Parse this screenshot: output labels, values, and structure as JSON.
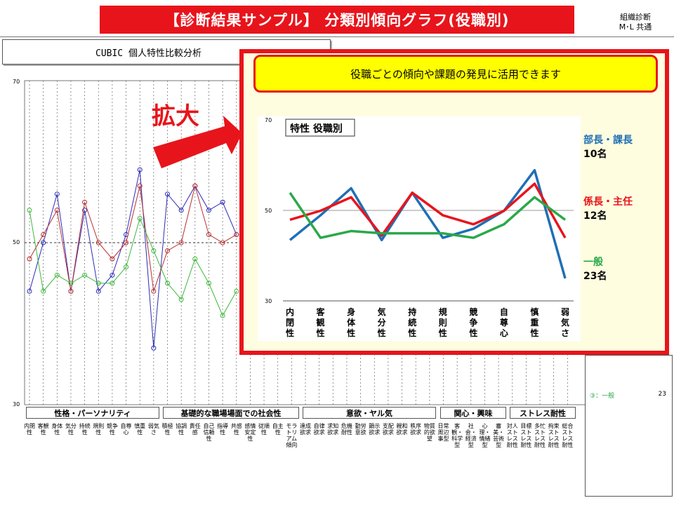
{
  "title": "【診断結果サンプル】 分類別傾向グラフ(役職別)",
  "corner_tag": [
    "組織診断",
    "M･L 共通"
  ],
  "cubic_title": "CUBIC 個人特性比較分析",
  "zoom_label": "拡大",
  "callout": "役職ごとの傾向や課題の発見に活用できます",
  "background_chart": {
    "y_ticks": [
      "70",
      "50",
      "30"
    ],
    "series": [
      {
        "name": "部長・課長",
        "color": "#2b2bb8",
        "values": [
          44,
          50,
          56,
          44,
          54,
          44,
          46,
          51,
          59,
          37,
          56,
          54,
          57,
          54,
          55,
          51
        ]
      },
      {
        "name": "係長・主任",
        "color": "#b83030",
        "values": [
          48,
          51,
          54,
          44,
          55,
          50,
          48,
          50,
          57,
          44,
          49,
          50,
          57,
          51,
          50,
          51
        ]
      },
      {
        "name": "一般",
        "color": "#3cb83c",
        "values": [
          54,
          44,
          46,
          45,
          46,
          45,
          45,
          47,
          53,
          49,
          45,
          43,
          48,
          45,
          41,
          44
        ]
      }
    ],
    "groups": [
      "性格・パーソナリティ",
      "基礎的な職場場面での社会性",
      "意欲・ヤル気",
      "関心・興味",
      "ストレス耐性"
    ],
    "traits": [
      "内閉性",
      "客観性",
      "身体性",
      "気分性",
      "持続性",
      "規則性",
      "競争性",
      "自尊心",
      "慎重性",
      "弱気さ",
      "積極性",
      "協調性",
      "責任感",
      "自己信頼性",
      "指導性",
      "共感性",
      "感情安定性",
      "従順性",
      "自主性",
      "モラトリアム傾向",
      "達成欲求",
      "自律欲求",
      "求知欲求",
      "危機耐性",
      "勤労意欲",
      "顕示欲求",
      "支配欲求",
      "親和欲求",
      "秩序欲求",
      "物質的欲望",
      "日常周辺事型",
      "客観・科学型",
      "社会・経済型",
      "心理・情緒型",
      "審美・芸術型",
      "対人ストレス耐性",
      "目標ストレス耐性",
      "多忙ストレス耐性",
      "拘束ストレス耐性",
      "総合ストレス耐性"
    ]
  },
  "right_panel": {
    "label": "③：一般",
    "value": "23"
  },
  "chart_data": {
    "type": "line",
    "title": "特性 役職別",
    "categories": [
      "内閉性",
      "客観性",
      "身体性",
      "気分性",
      "持続性",
      "規則性",
      "競争性",
      "自尊心",
      "慎重性",
      "弱気さ"
    ],
    "ylim": [
      30,
      70
    ],
    "y_ticks": [
      30,
      50,
      70
    ],
    "grid": "horizontal at 50",
    "legend_position": "right",
    "series": [
      {
        "name": "部長・課長",
        "count": "10名",
        "color": "#1f6fb5",
        "values": [
          43.5,
          49,
          55,
          43.5,
          54,
          44,
          46,
          50,
          59,
          35
        ]
      },
      {
        "name": "係長・主任",
        "count": "12名",
        "color": "#e8141b",
        "values": [
          48,
          50,
          53,
          44.5,
          54,
          49,
          47,
          50,
          56,
          44
        ]
      },
      {
        "name": "一般",
        "count": "23名",
        "color": "#2aa84a",
        "values": [
          54,
          44,
          45.5,
          45,
          45,
          45,
          44,
          47,
          53,
          48
        ]
      }
    ]
  }
}
